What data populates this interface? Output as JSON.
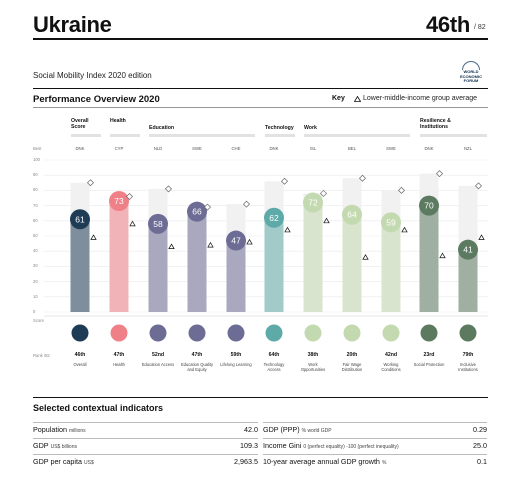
{
  "header": {
    "country": "Ukraine",
    "rank": "46th",
    "rank_of": "/ 82",
    "edition": "Social Mobility Index 2020 edition",
    "logo_text": [
      "WORLD",
      "ECONOMIC",
      "FORUM"
    ]
  },
  "performance": {
    "title": "Performance Overview 2020",
    "key_label": "Key",
    "key_text": "Lower-middle-income group average",
    "best_label": "Best",
    "score_label": "Score",
    "rank_label": "Rank /82"
  },
  "categories": [
    {
      "label": "Overall Score"
    },
    {
      "label": "Health"
    },
    {
      "label": "Education"
    },
    {
      "label": "Technology"
    },
    {
      "label": "Work"
    },
    {
      "label": "Resilience & Institutions"
    }
  ],
  "y_ticks": [
    "100",
    "90",
    "80",
    "70",
    "60",
    "50",
    "40",
    "30",
    "20",
    "10",
    "0"
  ],
  "colors": {
    "overall": "#1f3c57",
    "health": "#f08088",
    "education": "#6d6c95",
    "technology": "#5eaaa8",
    "work": "#c3d9b0",
    "resilience": "#5b7a60"
  },
  "chart_data": {
    "type": "bar",
    "categories": [
      "Overall",
      "Health",
      "Education Access",
      "Education Quality and Equity",
      "Lifelong Learning",
      "Technology Access",
      "Work Opportunities",
      "Fair Wage Distribution",
      "Working Conditions",
      "Social Protection",
      "Inclusive Institutions"
    ],
    "best_countries": [
      "DNK",
      "CYP",
      "NLD",
      "SWE",
      "CHE",
      "DNK",
      "ISL",
      "BEL",
      "SWE",
      "DNK",
      "NZL"
    ],
    "values": [
      61,
      73,
      58,
      66,
      47,
      62,
      72,
      64,
      59,
      70,
      41
    ],
    "best_values": [
      85,
      76,
      81,
      69,
      71,
      86,
      78,
      88,
      80,
      91,
      83
    ],
    "group_average": [
      49,
      58,
      43,
      44,
      46,
      54,
      60,
      36,
      54,
      37,
      49
    ],
    "ranks": [
      "46th",
      "47th",
      "52nd",
      "47th",
      "59th",
      "64th",
      "38th",
      "20th",
      "42nd",
      "23rd",
      "79th"
    ],
    "ylim": [
      0,
      100
    ]
  }
}
